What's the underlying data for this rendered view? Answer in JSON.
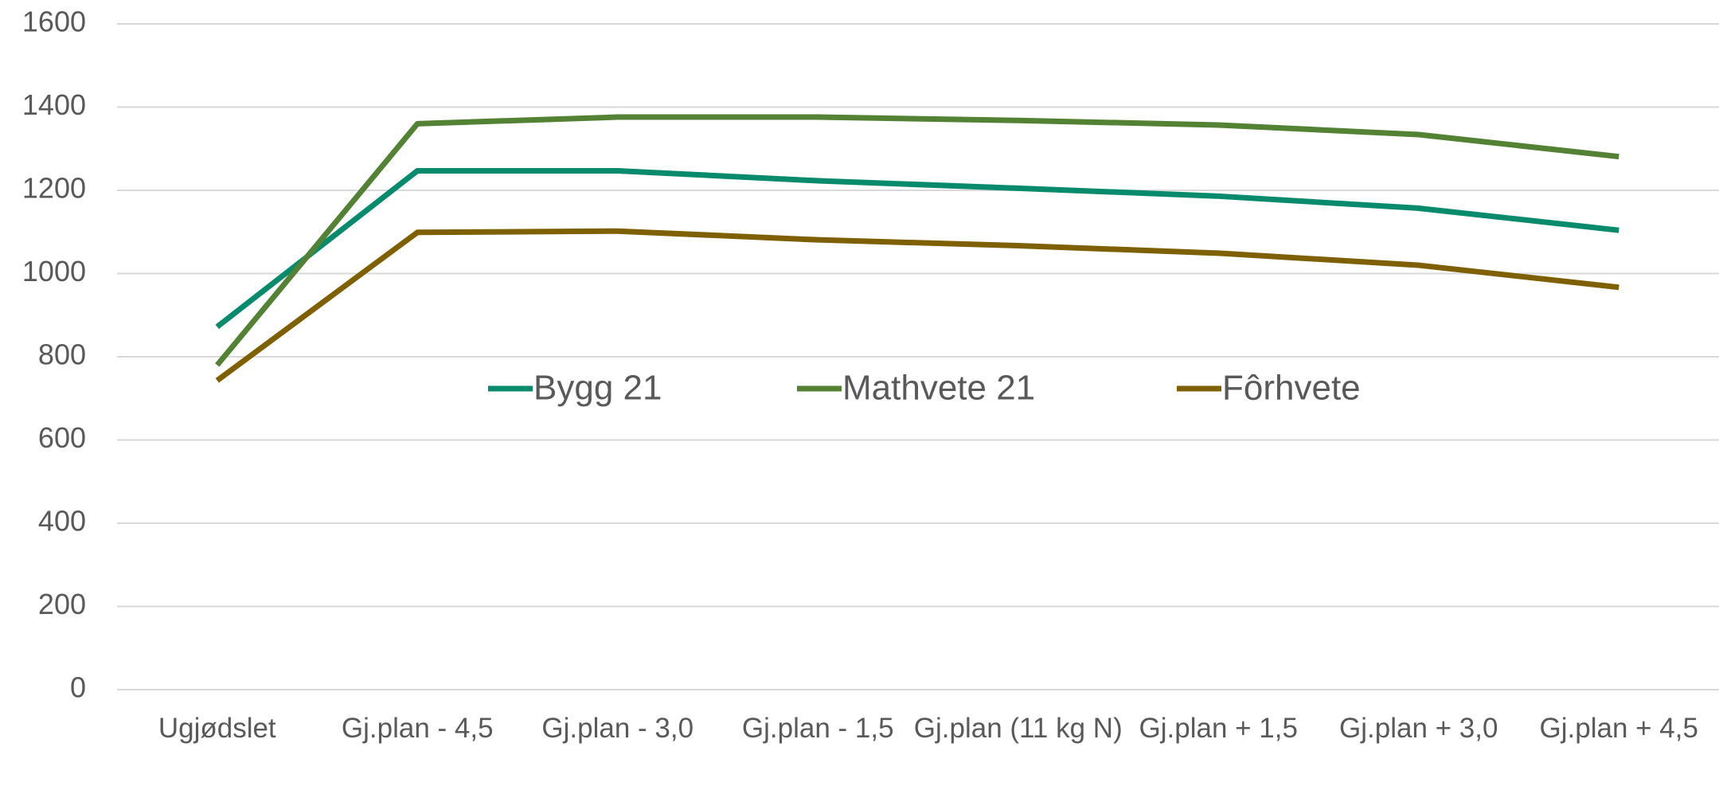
{
  "chart_data": {
    "type": "line",
    "categories": [
      "Ugjødslet",
      "Gj.plan - 4,5",
      "Gj.plan - 3,0",
      "Gj.plan - 1,5",
      "Gj.plan (11 kg N)",
      "Gj.plan + 1,5",
      "Gj.plan + 3,0",
      "Gj.plan + 4,5"
    ],
    "series": [
      {
        "name": "Bygg 21",
        "color": "#088a6c",
        "values": [
          872,
          1247,
          1247,
          1223,
          1205,
          1186,
          1157,
          1104
        ]
      },
      {
        "name": "Mathvete 21",
        "color": "#548235",
        "values": [
          780,
          1360,
          1376,
          1376,
          1368,
          1357,
          1334,
          1281
        ]
      },
      {
        "name": "Fôrhvete",
        "color": "#7f6000",
        "values": [
          743,
          1099,
          1102,
          1081,
          1067,
          1049,
          1020,
          967
        ]
      }
    ],
    "ylim": [
      0,
      1600
    ],
    "yticks": [
      0,
      200,
      400,
      600,
      800,
      1000,
      1200,
      1400,
      1600
    ],
    "grid": true,
    "legend": "center"
  }
}
